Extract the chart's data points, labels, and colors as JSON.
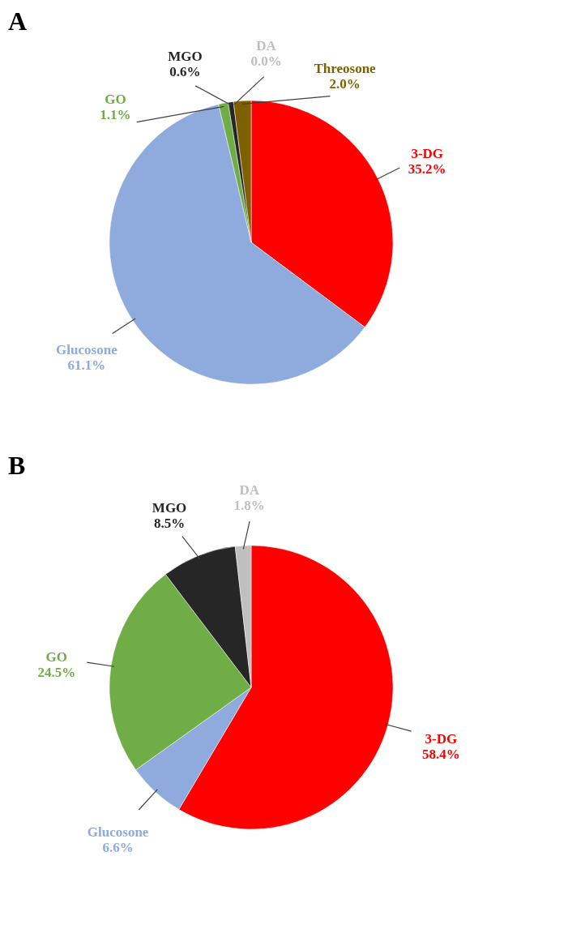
{
  "chart_data": [
    {
      "type": "pie",
      "title": "A",
      "categories": [
        "3-DG",
        "Glucosone",
        "GO",
        "MGO",
        "DA",
        "Threosone"
      ],
      "values": [
        35.2,
        61.1,
        1.1,
        0.6,
        0.0,
        2.0
      ],
      "value_labels": [
        "35.2%",
        "61.1%",
        "1.1%",
        "0.6%",
        "0.0%",
        "2.0%"
      ],
      "colors": [
        "#ff0000",
        "#8faadc",
        "#70ad47",
        "#262626",
        "#bfbfbf",
        "#7f6000"
      ]
    },
    {
      "type": "pie",
      "title": "B",
      "categories": [
        "3-DG",
        "Glucosone",
        "GO",
        "MGO",
        "DA"
      ],
      "values": [
        58.4,
        6.6,
        24.5,
        8.5,
        1.8
      ],
      "value_labels": [
        "58.4%",
        "6.6%",
        "24.5%",
        "8.5%",
        "1.8%"
      ],
      "colors": [
        "#ff0000",
        "#8faadc",
        "#70ad47",
        "#262626",
        "#bfbfbf"
      ]
    }
  ]
}
